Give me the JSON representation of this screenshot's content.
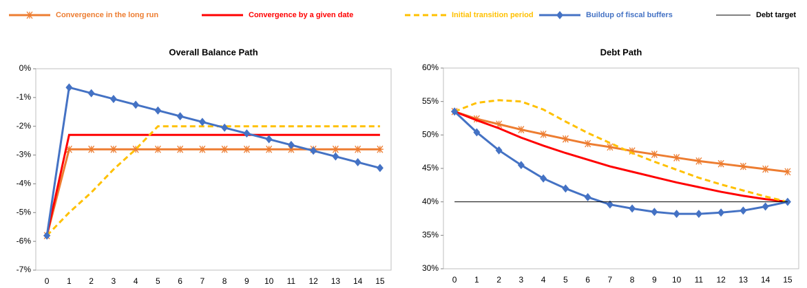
{
  "chart_data": [
    {
      "type": "line",
      "title": "Overall Balance Path",
      "categories": [
        "0",
        "1",
        "2",
        "3",
        "4",
        "5",
        "6",
        "7",
        "8",
        "9",
        "10",
        "11",
        "12",
        "13",
        "14",
        "15"
      ],
      "ylim": [
        -7,
        0
      ],
      "yticks": [
        {
          "value": -7,
          "label": "-7%"
        },
        {
          "value": -6,
          "label": "-6%"
        },
        {
          "value": -5,
          "label": "-5%"
        },
        {
          "value": -4,
          "label": "-4%"
        },
        {
          "value": -3,
          "label": "-3%"
        },
        {
          "value": -2,
          "label": "-2%"
        },
        {
          "value": -1,
          "label": "-1%"
        },
        {
          "value": 0,
          "label": "0%"
        }
      ],
      "series": [
        {
          "color": "#ed7d31",
          "marker": "asterisk",
          "values": [
            -5.8,
            -2.8,
            -2.8,
            -2.8,
            -2.8,
            -2.8,
            -2.8,
            -2.8,
            -2.8,
            -2.8,
            -2.8,
            -2.8,
            -2.8,
            -2.8,
            -2.8,
            -2.8
          ]
        },
        {
          "color": "#ff0000",
          "values": [
            -5.8,
            -2.3,
            -2.3,
            -2.3,
            -2.3,
            -2.3,
            -2.3,
            -2.3,
            -2.3,
            -2.3,
            -2.3,
            -2.3,
            -2.3,
            -2.3,
            -2.3,
            -2.3
          ]
        },
        {
          "color": "#ffc000",
          "dashed": true,
          "values": [
            -5.8,
            -5.0,
            -4.3,
            -3.5,
            -2.8,
            -2.0,
            -2.0,
            -2.0,
            -2.0,
            -2.0,
            -2.0,
            -2.0,
            -2.0,
            -2.0,
            -2.0,
            -2.0
          ]
        },
        {
          "color": "#4472c4",
          "marker": "diamond",
          "values": [
            -5.8,
            -0.65,
            -0.85,
            -1.05,
            -1.25,
            -1.45,
            -1.65,
            -1.85,
            -2.05,
            -2.25,
            -2.45,
            -2.65,
            -2.85,
            -3.05,
            -3.25,
            -3.45
          ]
        }
      ]
    },
    {
      "type": "line",
      "title": "Debt Path",
      "categories": [
        "0",
        "1",
        "2",
        "3",
        "4",
        "5",
        "6",
        "7",
        "8",
        "9",
        "10",
        "11",
        "12",
        "13",
        "14",
        "15"
      ],
      "ylim": [
        30,
        60
      ],
      "yticks": [
        {
          "value": 30,
          "label": "30%"
        },
        {
          "value": 35,
          "label": "35%"
        },
        {
          "value": 40,
          "label": "40%"
        },
        {
          "value": 45,
          "label": "45%"
        },
        {
          "value": 50,
          "label": "50%"
        },
        {
          "value": 55,
          "label": "55%"
        },
        {
          "value": 60,
          "label": "60%"
        }
      ],
      "series": [
        {
          "name": "Convergence in the long run",
          "color": "#ed7d31",
          "marker": "asterisk",
          "values": [
            53.5,
            52.4,
            51.6,
            50.8,
            50.1,
            49.4,
            48.7,
            48.2,
            47.6,
            47.1,
            46.6,
            46.1,
            45.7,
            45.3,
            44.9,
            44.5
          ]
        },
        {
          "name": "Convergence by a given date",
          "color": "#ff0000",
          "values": [
            53.5,
            52.2,
            51.0,
            49.6,
            48.4,
            47.3,
            46.3,
            45.3,
            44.5,
            43.7,
            42.9,
            42.2,
            41.5,
            40.9,
            40.4,
            40.0
          ]
        },
        {
          "name": "Initial transition period",
          "color": "#ffc000",
          "dashed": true,
          "values": [
            53.5,
            54.8,
            55.2,
            55.0,
            53.8,
            52.0,
            50.3,
            48.8,
            47.3,
            46.0,
            44.8,
            43.6,
            42.6,
            41.7,
            40.8,
            40.0
          ]
        },
        {
          "name": "Buildup of fiscal buffers",
          "color": "#4472c4",
          "marker": "diamond",
          "values": [
            53.5,
            50.4,
            47.7,
            45.5,
            43.5,
            42.0,
            40.7,
            39.6,
            39.0,
            38.5,
            38.2,
            38.2,
            38.4,
            38.7,
            39.3,
            40.0
          ]
        },
        {
          "name": "Debt target",
          "color": "#000000",
          "thin": true,
          "values": [
            40,
            40,
            40,
            40,
            40,
            40,
            40,
            40,
            40,
            40,
            40,
            40,
            40,
            40,
            40,
            40
          ]
        }
      ]
    }
  ]
}
